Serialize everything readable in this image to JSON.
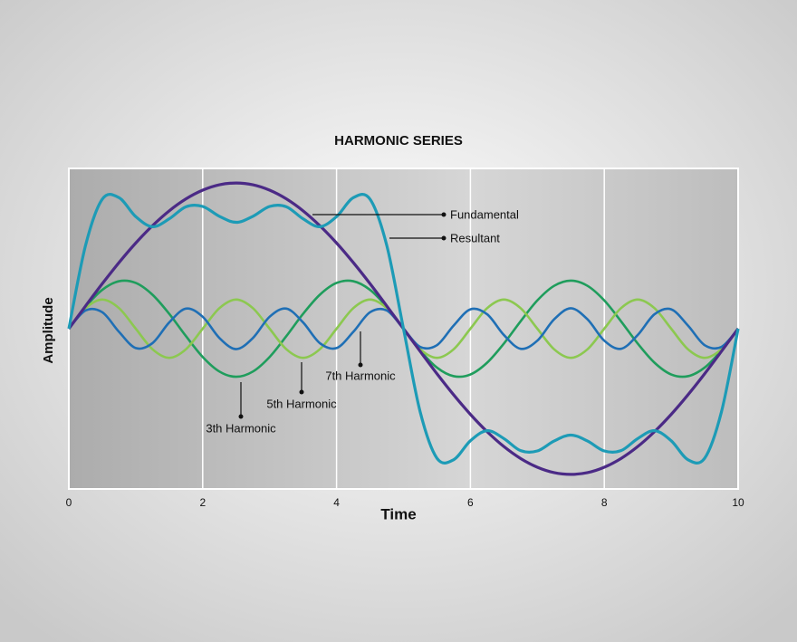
{
  "chart_data": {
    "type": "line",
    "title": "HARMONIC SERIES",
    "x_label": "Time",
    "y_label": "Amplitude",
    "x": [
      0,
      0.25,
      0.5,
      0.75,
      1,
      1.25,
      1.5,
      1.75,
      2,
      2.25,
      2.5,
      2.75,
      3,
      3.25,
      3.5,
      3.75,
      4,
      4.25,
      4.5,
      4.75,
      5,
      5.25,
      5.5,
      5.75,
      6,
      6.25,
      6.5,
      6.75,
      7,
      7.25,
      7.5,
      7.75,
      8,
      8.25,
      8.5,
      8.75,
      9,
      9.25,
      9.5,
      9.75,
      10
    ],
    "xlim": [
      0,
      10
    ],
    "xticks": [
      0,
      2,
      4,
      6,
      8,
      10
    ],
    "ylim": [
      -1.1,
      1.1
    ],
    "grid": true,
    "series": [
      {
        "name": "Fundamental",
        "color": "#4b2a86",
        "values": [
          0,
          0.156,
          0.309,
          0.454,
          0.588,
          0.707,
          0.809,
          0.891,
          0.951,
          0.988,
          1,
          0.988,
          0.951,
          0.891,
          0.809,
          0.707,
          0.588,
          0.454,
          0.309,
          0.156,
          0,
          -0.156,
          -0.309,
          -0.454,
          -0.588,
          -0.707,
          -0.809,
          -0.891,
          -0.951,
          -0.988,
          -1,
          -0.988,
          -0.951,
          -0.891,
          -0.809,
          -0.707,
          -0.588,
          -0.454,
          -0.309,
          -0.156,
          0
        ]
      },
      {
        "name": "Resultant",
        "color": "#1d9bb6",
        "values": [
          0,
          0.572,
          0.889,
          0.899,
          0.769,
          0.7,
          0.754,
          0.837,
          0.839,
          0.771,
          0.73,
          0.771,
          0.839,
          0.837,
          0.754,
          0.7,
          0.769,
          0.899,
          0.889,
          0.572,
          0,
          -0.572,
          -0.889,
          -0.899,
          -0.769,
          -0.7,
          -0.754,
          -0.837,
          -0.839,
          -0.771,
          -0.73,
          -0.771,
          -0.839,
          -0.837,
          -0.754,
          -0.7,
          -0.769,
          -0.899,
          -0.889,
          -0.572,
          0
        ]
      },
      {
        "name": "3th Harmonic",
        "color": "#1f9d5c",
        "values": [
          0,
          0.15,
          0.267,
          0.326,
          0.314,
          0.233,
          0.102,
          -0.051,
          -0.194,
          -0.294,
          -0.33,
          -0.294,
          -0.194,
          -0.051,
          0.102,
          0.233,
          0.314,
          0.326,
          0.267,
          0.15,
          0,
          -0.15,
          -0.267,
          -0.326,
          -0.314,
          -0.233,
          -0.102,
          0.051,
          0.194,
          0.294,
          0.33,
          0.294,
          0.194,
          0.051,
          -0.102,
          -0.233,
          -0.314,
          -0.326,
          -0.267,
          -0.15,
          0
        ]
      },
      {
        "name": "5th Harmonic",
        "color": "#8cc850",
        "values": [
          0,
          0.141,
          0.2,
          0.141,
          0,
          -0.141,
          -0.2,
          -0.141,
          0,
          0.141,
          0.2,
          0.141,
          0,
          -0.141,
          -0.2,
          -0.141,
          0,
          0.141,
          0.2,
          0.141,
          0,
          -0.141,
          -0.2,
          -0.141,
          0,
          0.141,
          0.2,
          0.141,
          0,
          -0.141,
          -0.2,
          -0.141,
          0,
          0.141,
          0.2,
          0.141,
          0,
          -0.141,
          -0.2,
          -0.141,
          0
        ]
      },
      {
        "name": "7th Harmonic",
        "color": "#1f6fb5",
        "values": [
          0,
          0.125,
          0.113,
          -0.022,
          -0.133,
          -0.099,
          0.043,
          0.138,
          0.082,
          -0.064,
          -0.14,
          -0.064,
          0.082,
          0.138,
          0.043,
          -0.099,
          -0.133,
          -0.022,
          0.113,
          0.125,
          0,
          -0.125,
          -0.113,
          0.022,
          0.133,
          0.099,
          -0.043,
          -0.138,
          -0.082,
          0.064,
          0.14,
          0.064,
          -0.082,
          -0.138,
          -0.043,
          0.099,
          0.133,
          0.022,
          -0.113,
          -0.125,
          0
        ]
      }
    ]
  }
}
